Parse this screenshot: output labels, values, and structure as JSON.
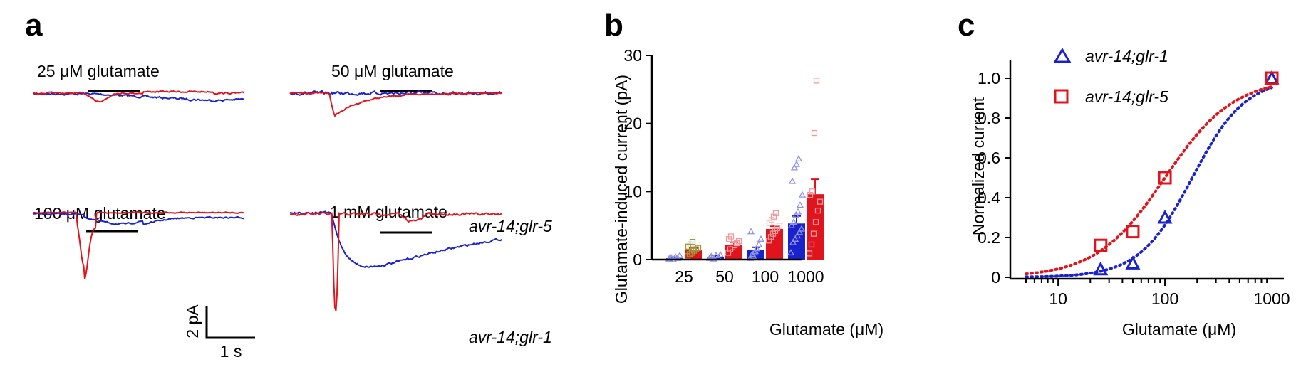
{
  "colors": {
    "glr1": "#1a22cc",
    "glr5": "#e0141c",
    "glr1_light": "#8e92e8",
    "glr5_light": "#f19a9e",
    "glr5_olive": "#9a9a40"
  },
  "panels": {
    "a": "a",
    "b": "b",
    "c": "c"
  },
  "traces": {
    "labels": [
      "25 μM glutamate",
      "50 μM glutamate",
      "100 μM glutamate",
      "1 mM glutamate"
    ],
    "legend": {
      "glr5": "avr-14;glr-5",
      "glr1": "avr-14;glr-1"
    },
    "scale": {
      "y": "2 pA",
      "x": "1 s"
    }
  },
  "chart_data": [
    {
      "panel": "b",
      "type": "bar",
      "categories": [
        "25",
        "50",
        "100",
        "1000"
      ],
      "xlabel": "Glutamate (μM)",
      "ylabel": "Glutamate-induced current (pA)",
      "ylim": [
        0,
        30
      ],
      "yticks": [
        0,
        10,
        20,
        30
      ],
      "series": [
        {
          "key": "glr1",
          "values": [
            0.2,
            0.4,
            1.4,
            5.3
          ],
          "errors": [
            0.15,
            0.2,
            0.4,
            1.1
          ],
          "points": [
            [
              0.1,
              0.3,
              0.0,
              0.4,
              0.2,
              0.6,
              0.1
            ],
            [
              0.2,
              0.5,
              0.1,
              0.6,
              0.3,
              0.7,
              0.4
            ],
            [
              0.2,
              0.8,
              1.0,
              1.6,
              2.2,
              3.0,
              4.1,
              0.5,
              1.2
            ],
            [
              1.0,
              2.5,
              3.0,
              3.5,
              4.0,
              4.5,
              5.0,
              5.5,
              6.5,
              7.0,
              8.0,
              9.5,
              11.5,
              13.5,
              14.0,
              14.8
            ]
          ]
        },
        {
          "key": "glr5",
          "values": [
            1.4,
            2.2,
            4.5,
            9.6
          ],
          "errors": [
            0.3,
            0.35,
            0.4,
            2.2
          ],
          "points": [
            [
              0.5,
              0.8,
              1.0,
              1.3,
              1.5,
              1.7,
              1.9,
              2.2,
              2.6
            ],
            [
              1.0,
              1.5,
              1.8,
              2.1,
              2.4,
              2.7,
              3.0,
              3.4
            ],
            [
              2.8,
              3.3,
              3.8,
              4.2,
              4.6,
              5.0,
              5.4,
              5.8,
              6.3,
              6.8
            ],
            [
              0.9,
              2.2,
              3.8,
              5.5,
              7.2,
              8.5,
              9.5,
              10.0,
              18.6,
              26.3
            ]
          ]
        }
      ]
    },
    {
      "panel": "c",
      "type": "scatter",
      "xlabel": "Glutamate (μM)",
      "ylabel": "Normalized current",
      "xscale": "log",
      "xlim": [
        5,
        1000
      ],
      "ylim": [
        0,
        1.05
      ],
      "xticks": [
        10,
        100,
        1000
      ],
      "yticks": [
        0,
        0.2,
        0.4,
        0.6,
        0.8,
        1.0
      ],
      "legend_position": "top-left",
      "series": [
        {
          "key": "glr1",
          "marker": "triangle",
          "x": [
            25,
            50,
            100,
            1000
          ],
          "y": [
            0.04,
            0.07,
            0.3,
            1.0
          ],
          "fit": {
            "ec50": 180,
            "hill": 1.75
          }
        },
        {
          "key": "glr5",
          "marker": "square",
          "x": [
            25,
            50,
            100,
            1000
          ],
          "y": [
            0.16,
            0.23,
            0.5,
            1.0
          ],
          "fit": {
            "ec50": 100,
            "hill": 1.35
          }
        }
      ]
    }
  ]
}
